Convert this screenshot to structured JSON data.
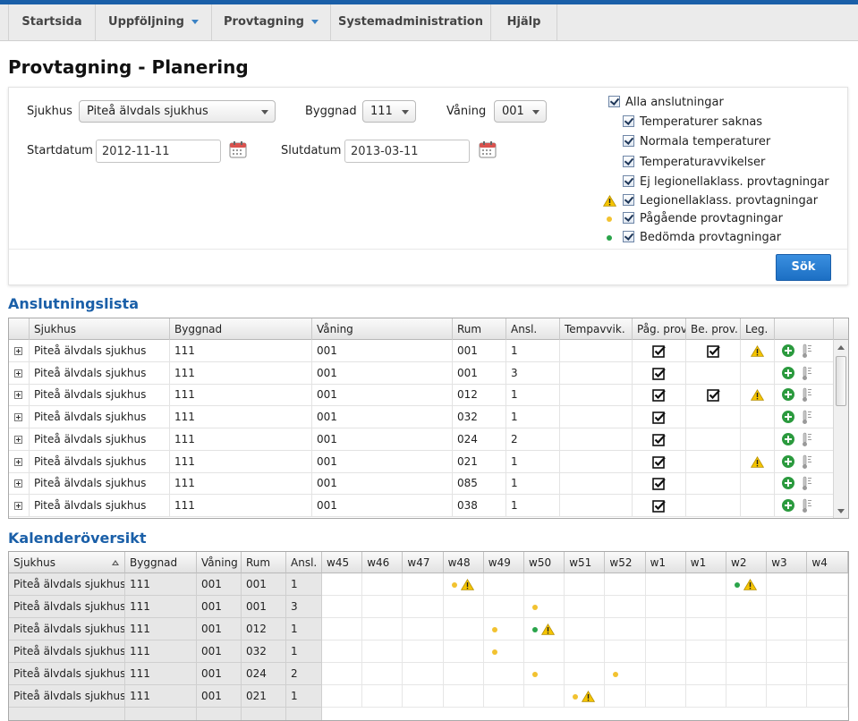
{
  "nav": {
    "items": [
      {
        "label": "Startsida",
        "dropdown": false
      },
      {
        "label": "Uppföljning",
        "dropdown": true
      },
      {
        "label": "Provtagning",
        "dropdown": true
      },
      {
        "label": "Systemadministration",
        "dropdown": false
      },
      {
        "label": "Hjälp",
        "dropdown": false
      }
    ]
  },
  "page": {
    "title": "Provtagning - Planering"
  },
  "filters": {
    "sjukhus_label": "Sjukhus",
    "sjukhus_value": "Piteå älvdals sjukhus",
    "byggnad_label": "Byggnad",
    "byggnad_value": "111",
    "vaning_label": "Våning",
    "vaning_value": "001",
    "startdatum_label": "Startdatum",
    "startdatum_value": "2012-11-11",
    "slutdatum_label": "Slutdatum",
    "slutdatum_value": "2013-03-11",
    "checkboxes": [
      {
        "label": "Alla anslutningar",
        "checked": true,
        "icon": ""
      },
      {
        "label": "Temperaturer saknas",
        "checked": true,
        "icon": ""
      },
      {
        "label": "Normala temperaturer",
        "checked": true,
        "icon": ""
      },
      {
        "label": "Temperaturavvikelser",
        "checked": true,
        "icon": ""
      },
      {
        "label": "Ej legionellaklass. provtagningar",
        "checked": true,
        "icon": ""
      },
      {
        "label": "Legionellaklass. provtagningar",
        "checked": true,
        "icon": "warning-icon"
      },
      {
        "label": "Pågående provtagningar",
        "checked": true,
        "icon": "yellow-dot-icon"
      },
      {
        "label": "Bedömda provtagningar",
        "checked": true,
        "icon": "green-dot-icon"
      }
    ],
    "search_label": "Sök"
  },
  "anslutningslista": {
    "title": "Anslutningslista",
    "columns": [
      "",
      "Sjukhus",
      "Byggnad",
      "Våning",
      "Rum",
      "Ansl.",
      "Tempavvik.",
      "Påg. prov.",
      "Be. prov.",
      "Leg.",
      ""
    ],
    "rows": [
      {
        "sjukhus": "Piteå älvdals sjukhus",
        "byggnad": "111",
        "vaning": "001",
        "rum": "001",
        "ansl": "1",
        "pag": true,
        "be": true,
        "leg": true
      },
      {
        "sjukhus": "Piteå älvdals sjukhus",
        "byggnad": "111",
        "vaning": "001",
        "rum": "001",
        "ansl": "3",
        "pag": true,
        "be": false,
        "leg": false
      },
      {
        "sjukhus": "Piteå älvdals sjukhus",
        "byggnad": "111",
        "vaning": "001",
        "rum": "012",
        "ansl": "1",
        "pag": true,
        "be": true,
        "leg": true
      },
      {
        "sjukhus": "Piteå älvdals sjukhus",
        "byggnad": "111",
        "vaning": "001",
        "rum": "032",
        "ansl": "1",
        "pag": true,
        "be": false,
        "leg": false
      },
      {
        "sjukhus": "Piteå älvdals sjukhus",
        "byggnad": "111",
        "vaning": "001",
        "rum": "024",
        "ansl": "2",
        "pag": true,
        "be": false,
        "leg": false
      },
      {
        "sjukhus": "Piteå älvdals sjukhus",
        "byggnad": "111",
        "vaning": "001",
        "rum": "021",
        "ansl": "1",
        "pag": true,
        "be": false,
        "leg": true
      },
      {
        "sjukhus": "Piteå älvdals sjukhus",
        "byggnad": "111",
        "vaning": "001",
        "rum": "085",
        "ansl": "1",
        "pag": true,
        "be": false,
        "leg": false
      },
      {
        "sjukhus": "Piteå älvdals sjukhus",
        "byggnad": "111",
        "vaning": "001",
        "rum": "038",
        "ansl": "1",
        "pag": true,
        "be": false,
        "leg": false
      }
    ]
  },
  "kalenderoversikt": {
    "title": "Kalenderöversikt",
    "columns": [
      "Sjukhus",
      "Byggnad",
      "Våning",
      "Rum",
      "Ansl."
    ],
    "weeks": [
      "w45",
      "w46",
      "w47",
      "w48",
      "w49",
      "w50",
      "w51",
      "w52",
      "w1",
      "w1",
      "w2",
      "w3",
      "w4"
    ],
    "rows": [
      {
        "sjukhus": "Piteå älvdals sjukhus",
        "byggnad": "111",
        "vaning": "001",
        "rum": "001",
        "ansl": "1",
        "marks": [
          {
            "week": 3,
            "items": [
              "yellow",
              "warning"
            ]
          },
          {
            "week": 10,
            "items": [
              "green",
              "warning"
            ]
          }
        ]
      },
      {
        "sjukhus": "Piteå älvdals sjukhus",
        "byggnad": "111",
        "vaning": "001",
        "rum": "001",
        "ansl": "3",
        "marks": [
          {
            "week": 5,
            "items": [
              "yellow"
            ]
          }
        ]
      },
      {
        "sjukhus": "Piteå älvdals sjukhus",
        "byggnad": "111",
        "vaning": "001",
        "rum": "012",
        "ansl": "1",
        "marks": [
          {
            "week": 4,
            "items": [
              "yellow"
            ]
          },
          {
            "week": 5,
            "items": [
              "green",
              "warning"
            ]
          }
        ]
      },
      {
        "sjukhus": "Piteå älvdals sjukhus",
        "byggnad": "111",
        "vaning": "001",
        "rum": "032",
        "ansl": "1",
        "marks": [
          {
            "week": 4,
            "items": [
              "yellow"
            ]
          }
        ]
      },
      {
        "sjukhus": "Piteå älvdals sjukhus",
        "byggnad": "111",
        "vaning": "001",
        "rum": "024",
        "ansl": "2",
        "marks": [
          {
            "week": 5,
            "items": [
              "yellow"
            ]
          },
          {
            "week": 7,
            "items": [
              "yellow"
            ]
          }
        ]
      },
      {
        "sjukhus": "Piteå älvdals sjukhus",
        "byggnad": "111",
        "vaning": "001",
        "rum": "021",
        "ansl": "1",
        "marks": [
          {
            "week": 6,
            "items": [
              "yellow",
              "warning"
            ]
          }
        ]
      }
    ]
  },
  "colors": {
    "accent": "#1a5fa8",
    "button": "#2a7fd4",
    "warning": "#f5c400",
    "pending": "#f2c230",
    "assessed": "#2aa44a"
  }
}
